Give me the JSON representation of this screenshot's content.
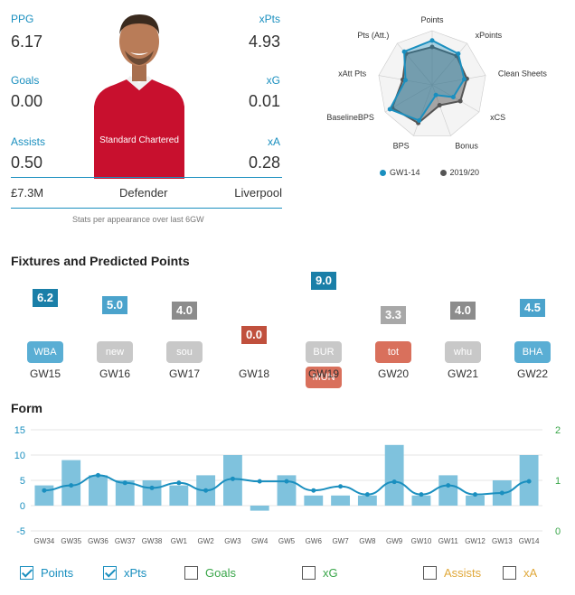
{
  "player": {
    "ppg_label": "PPG",
    "ppg": "6.17",
    "xpts_label": "xPts",
    "xpts": "4.93",
    "goals_label": "Goals",
    "goals": "0.00",
    "xg_label": "xG",
    "xg": "0.01",
    "assists_label": "Assists",
    "assists": "0.50",
    "xa_label": "xA",
    "xa": "0.28",
    "price": "£7.3M",
    "position": "Defender",
    "team": "Liverpool",
    "note": "Stats per appearance over last 6GW",
    "shirt_sponsor": "Standard Chartered"
  },
  "radar": {
    "labels": [
      "Points",
      "xPoints",
      "Clean Sheets",
      "xCS",
      "Bonus",
      "BPS",
      "BaselineBPS",
      "xAtt Pts",
      "Pts (Att.)"
    ],
    "series1": [
      0.82,
      0.75,
      0.6,
      0.45,
      0.2,
      0.7,
      0.9,
      0.5,
      0.8
    ],
    "series2": [
      0.7,
      0.7,
      0.65,
      0.6,
      0.4,
      0.75,
      0.85,
      0.55,
      0.75
    ],
    "legend1": "GW1-14",
    "legend2": "2019/20",
    "color1": "#1a8fbf",
    "color2": "#555555"
  },
  "fixtures": {
    "title": "Fixtures and Predicted Points",
    "items": [
      {
        "gw": "GW15",
        "value": "6.2",
        "val_color": "#1a7fa8",
        "team": "WBA",
        "team_color": "#5aaed4"
      },
      {
        "gw": "GW16",
        "value": "5.0",
        "val_color": "#4ba3cc",
        "team": "new",
        "team_color": "#c8c8c8"
      },
      {
        "gw": "GW17",
        "value": "4.0",
        "val_color": "#8c8c8c",
        "team": "sou",
        "team_color": "#c8c8c8"
      },
      {
        "gw": "GW18",
        "value": "0.0",
        "val_color": "#c0503d",
        "team": "",
        "team_color": ""
      },
      {
        "gw": "GW19",
        "value": "9.0",
        "val_color": "#1a7fa8",
        "team": "BUR",
        "team_color": "#c8c8c8",
        "team2": "MUN",
        "team2_color": "#d9705c"
      },
      {
        "gw": "GW20",
        "value": "3.3",
        "val_color": "#a8a8a8",
        "team": "tot",
        "team_color": "#d9705c"
      },
      {
        "gw": "GW21",
        "value": "4.0",
        "val_color": "#8c8c8c",
        "team": "whu",
        "team_color": "#c8c8c8"
      },
      {
        "gw": "GW22",
        "value": "4.5",
        "val_color": "#4ba3cc",
        "team": "BHA",
        "team_color": "#5aaed4"
      }
    ]
  },
  "form": {
    "title": "Form",
    "chart_data": {
      "type": "bar",
      "categories": [
        "GW34",
        "GW35",
        "GW36",
        "GW37",
        "GW38",
        "GW1",
        "GW2",
        "GW3",
        "GW4",
        "GW5",
        "GW6",
        "GW7",
        "GW8",
        "GW9",
        "GW10",
        "GW11",
        "GW12",
        "GW13",
        "GW14"
      ],
      "series": [
        {
          "name": "Points",
          "values": [
            4,
            9,
            6,
            5,
            5,
            4,
            6,
            10,
            -1,
            6,
            2,
            2,
            2,
            12,
            2,
            6,
            2,
            5,
            10
          ]
        },
        {
          "name": "xPts",
          "values": [
            0.8,
            0.9,
            1.1,
            0.95,
            0.85,
            0.95,
            0.8,
            1.03,
            0.98,
            0.98,
            0.8,
            0.88,
            0.72,
            0.97,
            0.72,
            0.9,
            0.72,
            0.75,
            0.98
          ]
        }
      ],
      "ylim_left": [
        -5,
        15
      ],
      "yticks_left": [
        "-5",
        "0",
        "5",
        "10",
        "15"
      ],
      "ylim_right": [
        0,
        2
      ],
      "yticks_right": [
        "0",
        "1",
        "2"
      ],
      "bar_color": "#7fc2dd",
      "line_color": "#1a8fbf",
      "right_axis_color": "#3aa64a"
    },
    "legend": [
      {
        "label": "Points",
        "checked": true,
        "color": "#1a8fbf"
      },
      {
        "label": "xPts",
        "checked": true,
        "color": "#1a8fbf"
      },
      {
        "label": "Goals",
        "checked": false,
        "color": "#3aa64a"
      },
      {
        "label": "xG",
        "checked": false,
        "color": "#3aa64a"
      },
      {
        "label": "Assists",
        "checked": false,
        "color": "#e0a83a"
      },
      {
        "label": "xA",
        "checked": false,
        "color": "#e0a83a"
      }
    ]
  }
}
